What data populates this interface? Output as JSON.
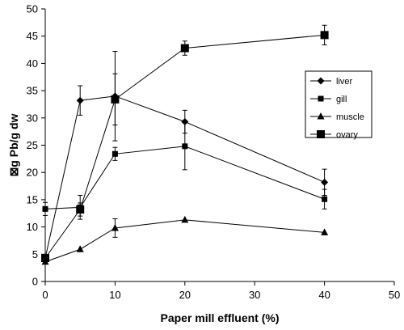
{
  "chart_data": {
    "type": "line",
    "title": "",
    "xlabel": "Paper mill effluent (%)",
    "ylabel": "⊠g Pb/g dw",
    "xlim": [
      0,
      50
    ],
    "ylim": [
      0,
      50
    ],
    "x_ticks": [
      0,
      10,
      20,
      30,
      40,
      50
    ],
    "y_ticks": [
      0,
      5,
      10,
      15,
      20,
      25,
      30,
      35,
      40,
      45,
      50
    ],
    "grid": false,
    "legend_position": "right",
    "series": [
      {
        "name": "liver",
        "marker": "diamond",
        "points": [
          {
            "x": 0,
            "y": 4.3,
            "err": 0
          },
          {
            "x": 5,
            "y": 33.2,
            "err": 2.7
          },
          {
            "x": 10,
            "y": 34.0,
            "err": 8.2
          },
          {
            "x": 20,
            "y": 29.3,
            "err": 2.1
          },
          {
            "x": 40,
            "y": 18.2,
            "err": 2.4
          }
        ]
      },
      {
        "name": "gill",
        "marker": "square-small",
        "points": [
          {
            "x": 0,
            "y": 13.3,
            "err": 1.2
          },
          {
            "x": 5,
            "y": 13.6,
            "err": 2.2
          },
          {
            "x": 10,
            "y": 23.4,
            "err": 1.2
          },
          {
            "x": 20,
            "y": 24.8,
            "err": 4.3
          },
          {
            "x": 40,
            "y": 15.1,
            "err": 1.8
          }
        ]
      },
      {
        "name": "muscle",
        "marker": "triangle",
        "points": [
          {
            "x": 0,
            "y": 3.6,
            "err": 0
          },
          {
            "x": 5,
            "y": 5.9,
            "err": 0
          },
          {
            "x": 10,
            "y": 9.8,
            "err": 1.7
          },
          {
            "x": 20,
            "y": 11.3,
            "err": 0
          },
          {
            "x": 40,
            "y": 9.0,
            "err": 0
          }
        ]
      },
      {
        "name": "ovary",
        "marker": "square-large",
        "points": [
          {
            "x": 0,
            "y": 4.3,
            "err": 0
          },
          {
            "x": 5,
            "y": 13.2,
            "err": 1.2
          },
          {
            "x": 10,
            "y": 33.4,
            "err": 4.7
          },
          {
            "x": 20,
            "y": 42.8,
            "err": 1.3
          },
          {
            "x": 40,
            "y": 45.2,
            "err": 1.8
          }
        ]
      }
    ]
  }
}
